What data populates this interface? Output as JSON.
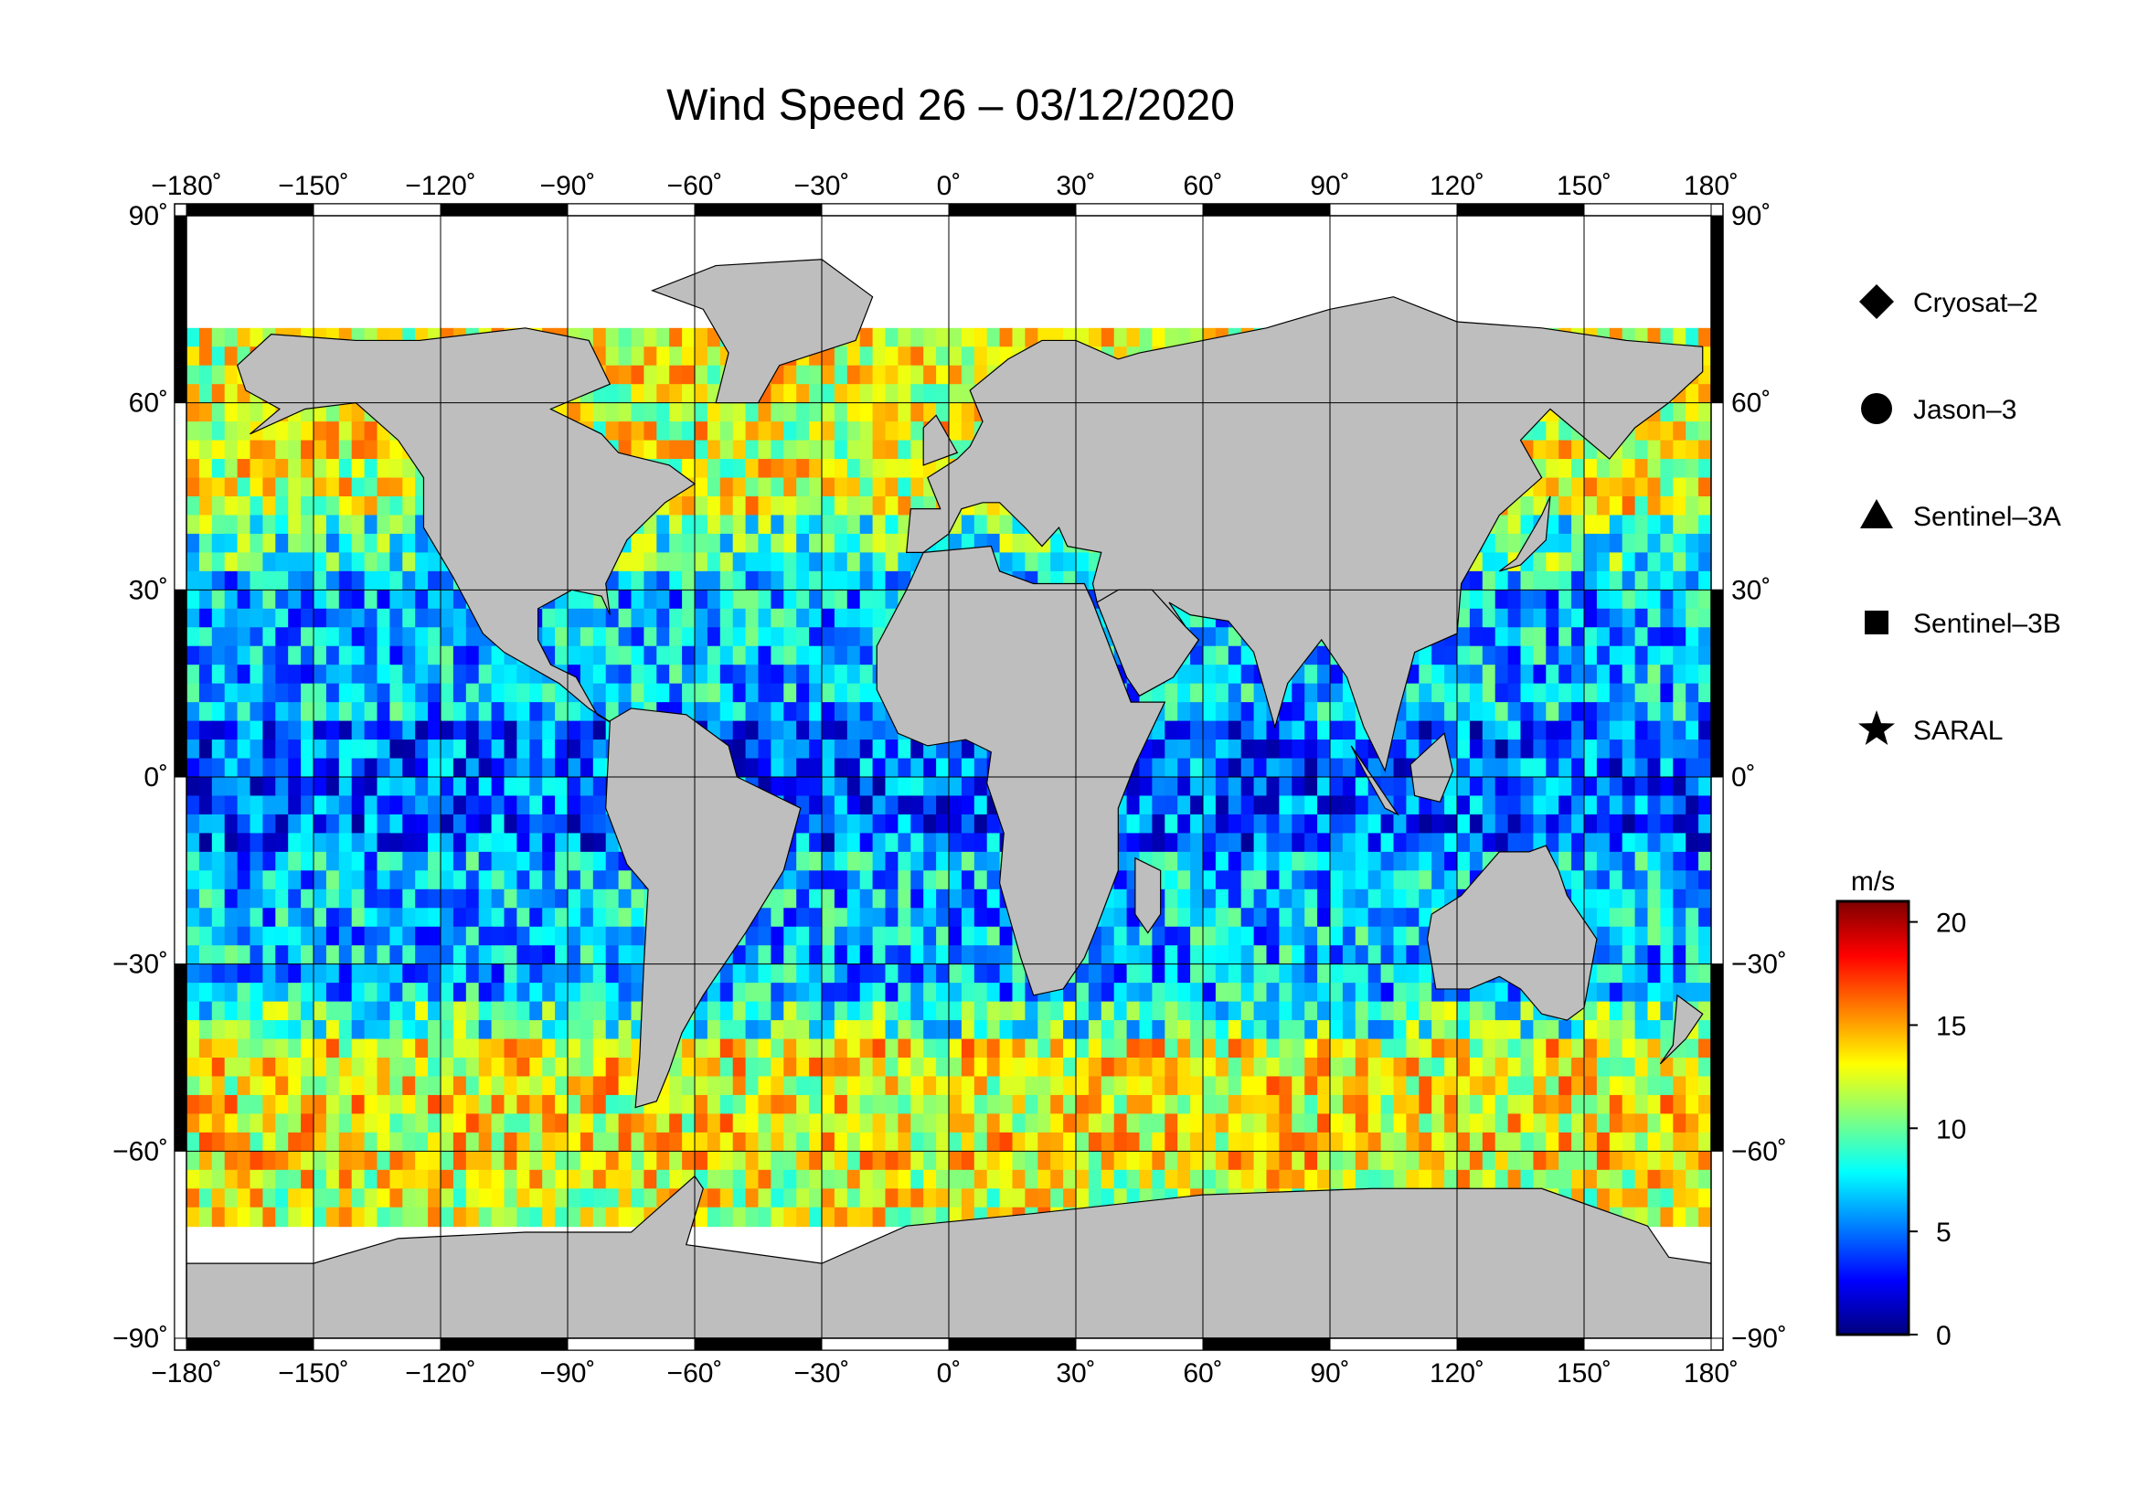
{
  "title": "Wind Speed 26 – 03/12/2020",
  "map": {
    "lon_ticks": [
      {
        "value": -180,
        "label": "−180˚"
      },
      {
        "value": -150,
        "label": "−150˚"
      },
      {
        "value": -120,
        "label": "−120˚"
      },
      {
        "value": -90,
        "label": "−90˚"
      },
      {
        "value": -60,
        "label": "−60˚"
      },
      {
        "value": -30,
        "label": "−30˚"
      },
      {
        "value": 0,
        "label": "0˚"
      },
      {
        "value": 30,
        "label": "30˚"
      },
      {
        "value": 60,
        "label": "60˚"
      },
      {
        "value": 90,
        "label": "90˚"
      },
      {
        "value": 120,
        "label": "120˚"
      },
      {
        "value": 150,
        "label": "150˚"
      },
      {
        "value": 180,
        "label": "180˚"
      }
    ],
    "lat_ticks": [
      {
        "value": 90,
        "label": "90˚"
      },
      {
        "value": 60,
        "label": "60˚"
      },
      {
        "value": 30,
        "label": "30˚"
      },
      {
        "value": 0,
        "label": "0˚"
      },
      {
        "value": -30,
        "label": "−30˚"
      },
      {
        "value": -60,
        "label": "−60˚"
      },
      {
        "value": -90,
        "label": "−90˚"
      }
    ],
    "lon_range": [
      -180,
      180
    ],
    "lat_range": [
      -90,
      90
    ],
    "grid": true,
    "land_color": "#bebebe",
    "ice_color": "#ffffff"
  },
  "legend": [
    {
      "symbol": "diamond-icon",
      "label": "Cryosat–2"
    },
    {
      "symbol": "circle-icon",
      "label": "Jason–3"
    },
    {
      "symbol": "triangle-icon",
      "label": "Sentinel–3A"
    },
    {
      "symbol": "square-icon",
      "label": "Sentinel–3B"
    },
    {
      "symbol": "star-icon",
      "label": "SARAL"
    }
  ],
  "colorbar": {
    "unit": "m/s",
    "min": 0,
    "max": 21,
    "ticks": [
      {
        "value": 0,
        "label": "0"
      },
      {
        "value": 5,
        "label": "5"
      },
      {
        "value": 10,
        "label": "10"
      },
      {
        "value": 15,
        "label": "15"
      },
      {
        "value": 20,
        "label": "20"
      }
    ],
    "colors": [
      "#00007f",
      "#0000ff",
      "#007fff",
      "#00ffff",
      "#7fff7f",
      "#ffff00",
      "#ff7f00",
      "#ff0000",
      "#7f0000"
    ]
  }
}
